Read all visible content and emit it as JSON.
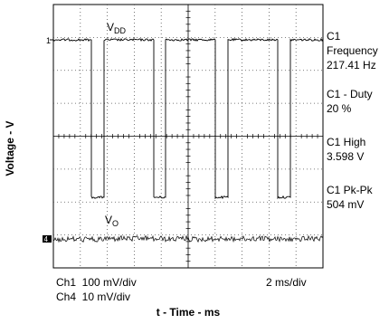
{
  "chart_data": {
    "type": "line",
    "title": "",
    "xlabel": "t - Time - ms",
    "ylabel": "Voltage - V",
    "grid": true,
    "time_per_div_ms": 2,
    "divisions": {
      "x": 10,
      "y": 8
    },
    "x_range_ms": [
      0,
      20
    ],
    "series": [
      {
        "name": "VDD",
        "label_base": "V",
        "label_sub": "DD",
        "channel": "1",
        "volts_per_div": 0.1,
        "waveform": "pulse",
        "period_ms": 4.6,
        "low_fraction": 0.2,
        "pulse_starts_ms": [
          2.8,
          7.4,
          12.0,
          16.6
        ],
        "amplitude_mv": 504,
        "high_v": 3.598
      },
      {
        "name": "VO",
        "label_base": "V",
        "label_sub": "O",
        "channel": "4",
        "volts_per_div": 0.01,
        "waveform": "noise"
      }
    ],
    "measurements": [
      {
        "label": "C1",
        "sub": "Frequency",
        "value": "217.41 Hz"
      },
      {
        "label": "C1 - Duty",
        "value": "20 %"
      },
      {
        "label": "C1 High",
        "value": "3.598 V"
      },
      {
        "label": "C1 Pk-Pk",
        "value": "504 mV"
      }
    ],
    "channel_info": {
      "ch1": "Ch1  100 mV/div",
      "ch4": "Ch4  10 mV/div",
      "timebase": "2 ms/div"
    },
    "markers": {
      "ch1": "1",
      "ch4": "4"
    }
  }
}
